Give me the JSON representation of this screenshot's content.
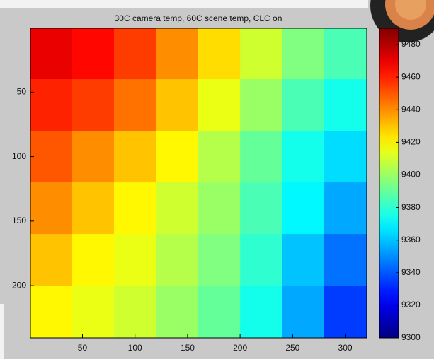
{
  "chart_data": {
    "type": "heatmap",
    "title": "30C camera temp, 60C scene temp, CLC on",
    "colormap": "jet",
    "x": [
      20,
      60,
      100,
      140,
      180,
      220,
      260,
      300
    ],
    "y": [
      20,
      60,
      100,
      140,
      180,
      220
    ],
    "z": [
      [
        9470,
        9465,
        9455,
        9440,
        9425,
        9410,
        9395,
        9385
      ],
      [
        9460,
        9455,
        9445,
        9430,
        9415,
        9400,
        9385,
        9375
      ],
      [
        9450,
        9440,
        9430,
        9420,
        9405,
        9390,
        9375,
        9365
      ],
      [
        9440,
        9430,
        9420,
        9410,
        9400,
        9385,
        9370,
        9355
      ],
      [
        9430,
        9420,
        9415,
        9405,
        9395,
        9380,
        9360,
        9345
      ],
      [
        9420,
        9415,
        9410,
        9400,
        9390,
        9375,
        9355,
        9335
      ]
    ],
    "xlim": [
      0.5,
      320.5
    ],
    "xticks": [
      50,
      100,
      150,
      200,
      250,
      300
    ],
    "ylim": [
      0.5,
      240.5
    ],
    "yticks": [
      50,
      100,
      150,
      200
    ],
    "ydir": "reverse",
    "clim": [
      9300,
      9490
    ],
    "cticks": [
      9300,
      9320,
      9340,
      9360,
      9380,
      9400,
      9420,
      9440,
      9460,
      9480
    ]
  }
}
